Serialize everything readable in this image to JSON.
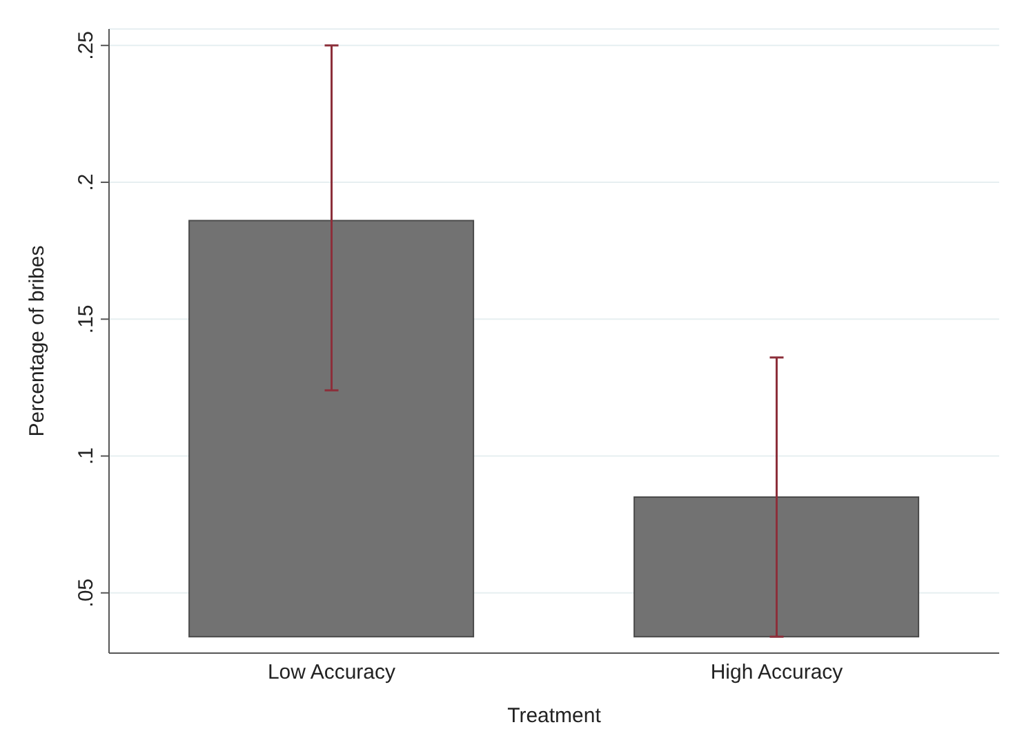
{
  "chart_data": {
    "type": "bar",
    "xlabel": "Treatment",
    "ylabel": "Percentage of bribes",
    "categories": [
      "Low Accuracy",
      "High Accuracy"
    ],
    "base": [
      0.034,
      0.034
    ],
    "values": [
      0.152,
      0.051
    ],
    "errors": [
      [
        0.124,
        0.25
      ],
      [
        0.034,
        0.136
      ]
    ],
    "color": "#727272",
    "ylim": [
      0.028,
      0.256
    ],
    "yticks": [
      {
        "value": 0.05,
        "label": ".05"
      },
      {
        "value": 0.1,
        "label": ".1"
      },
      {
        "value": 0.15,
        "label": ".15"
      },
      {
        "value": 0.2,
        "label": ".2"
      },
      {
        "value": 0.25,
        "label": ".25"
      }
    ],
    "grid": "y",
    "legend": false
  }
}
